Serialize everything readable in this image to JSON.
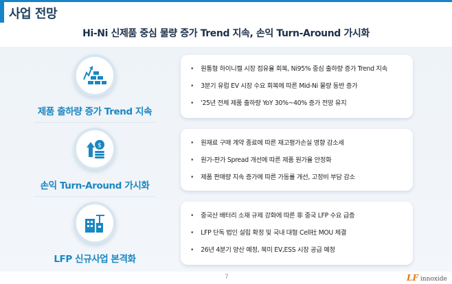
{
  "header": {
    "title": "사업 전망",
    "subtitle": "Hi-Ni 신제품 중심 물량 증가 Trend 지속, 손익 Turn-Around 가시화"
  },
  "sections": [
    {
      "icon": "gold-bars-growth-icon",
      "label": "제품 출하량 증가 Trend 지속",
      "bullets": [
        "원통형 하이니켈 시장 점유율 회복, Ni95% 중심 출하량 증가 Trend 지속",
        "3분기 유럽 EV 시장 수요 회복에 따른 Mid-Ni 물량 동반 증가",
        "'25년 전체 제품 출하량 YoY 30%~40% 증가 전망 유지"
      ]
    },
    {
      "icon": "coins-growth-icon",
      "label": "손익 Turn-Around 가시화",
      "bullets": [
        "원재료 구매 계약 종료에 따른 재고평가손실 영향 감소세",
        "원가-판가 Spread 개선에 따른 제품 원가율 안정화",
        "제품 판매량 지속 증가에 따른 가동률 개선, 고정비 부담 감소"
      ]
    },
    {
      "icon": "factory-building-icon",
      "label": "LFP 신규사업 본격화",
      "bullets": [
        "중국산 배터리 소재 규제 강화에 따른 非 중국 LFP 수요 급증",
        "LFP 단독 법인 설립 확정 및 국내 대형 Cell社 MOU 체결",
        "26년 4분기 양산 예정, 북미 EV,ESS 시장 공급 예정"
      ]
    }
  ],
  "footer": {
    "page": "7",
    "logo_mark": "LF",
    "logo_text": "innoxide"
  },
  "colors": {
    "accent": "#1784c7",
    "label": "#1a87c2",
    "title": "#1d3f5e"
  }
}
